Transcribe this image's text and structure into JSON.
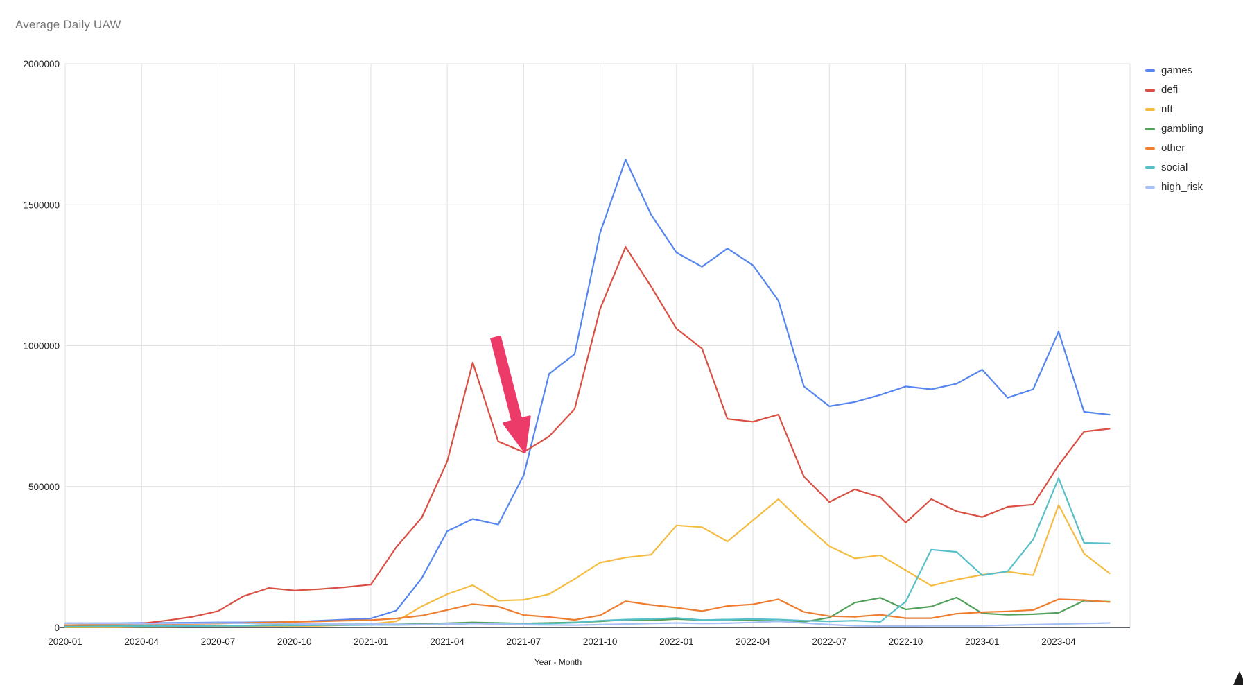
{
  "title": "Average Daily UAW",
  "y_axis": {
    "tick_values": [
      2000000,
      1500000,
      1000000,
      500000,
      0
    ],
    "tick_labels": [
      "2000000",
      "1500000",
      "1000000",
      "500000",
      "0"
    ]
  },
  "annotation": {
    "shape": "arrow",
    "color": "#ec3b68",
    "points_at": "2021-07 dip where games line crosses defi line",
    "from_month_index": 16.9,
    "from_value": 1028000,
    "to_month_index": 18.05,
    "to_value": 622000
  },
  "chart_data": {
    "type": "line",
    "title": "Average Daily UAW",
    "xlabel": "Year - Month",
    "ylabel": "",
    "ylim": [
      0,
      2000000
    ],
    "grid": true,
    "legend_position": "top-right",
    "x": [
      "2020-01",
      "2020-02",
      "2020-03",
      "2020-04",
      "2020-05",
      "2020-06",
      "2020-07",
      "2020-08",
      "2020-09",
      "2020-10",
      "2020-11",
      "2020-12",
      "2021-01",
      "2021-02",
      "2021-03",
      "2021-04",
      "2021-05",
      "2021-06",
      "2021-07",
      "2021-08",
      "2021-09",
      "2021-10",
      "2021-11",
      "2021-12",
      "2022-01",
      "2022-02",
      "2022-03",
      "2022-04",
      "2022-05",
      "2022-06",
      "2022-07",
      "2022-08",
      "2022-09",
      "2022-10",
      "2022-11",
      "2022-12",
      "2023-01",
      "2023-02",
      "2023-03",
      "2023-04",
      "2023-05",
      "2023-06"
    ],
    "x_tick_labels": [
      "2020-01",
      "2020-04",
      "2020-07",
      "2020-10",
      "2021-01",
      "2021-04",
      "2021-07",
      "2021-10",
      "2022-01",
      "2022-04",
      "2022-07",
      "2022-10",
      "2023-01",
      "2023-04"
    ],
    "series": [
      {
        "name": "games",
        "color": "#5585ee",
        "values": [
          15000,
          15000,
          15000,
          16000,
          16000,
          17000,
          18000,
          18000,
          19000,
          20000,
          24000,
          28000,
          32000,
          60000,
          175000,
          342000,
          385000,
          365000,
          540000,
          900000,
          970000,
          1400000,
          1660000,
          1465000,
          1330000,
          1280000,
          1345000,
          1285000,
          1160000,
          855000,
          785000,
          800000,
          825000,
          855000,
          845000,
          865000,
          915000,
          815000,
          845000,
          1050000,
          765000,
          755000
        ]
      },
      {
        "name": "defi",
        "color": "#da4f43",
        "values": [
          8000,
          9000,
          11000,
          14000,
          25000,
          38000,
          58000,
          111000,
          140000,
          131000,
          136000,
          143000,
          152000,
          285000,
          390000,
          590000,
          940000,
          660000,
          622000,
          678000,
          775000,
          1130000,
          1350000,
          1210000,
          1060000,
          990000,
          740000,
          730000,
          755000,
          535000,
          445000,
          490000,
          462000,
          372000,
          455000,
          412000,
          392000,
          428000,
          436000,
          576000,
          695000,
          705000
        ]
      },
      {
        "name": "nft",
        "color": "#f5bc42",
        "values": [
          1000,
          1000,
          1000,
          2000,
          2000,
          3000,
          3000,
          4000,
          4000,
          5000,
          6000,
          8000,
          12000,
          22000,
          75000,
          118000,
          150000,
          95000,
          98000,
          118000,
          172000,
          230000,
          248000,
          258000,
          362000,
          356000,
          305000,
          380000,
          455000,
          368000,
          288000,
          245000,
          256000,
          203000,
          148000,
          170000,
          187000,
          198000,
          185000,
          435000,
          262000,
          192000
        ]
      },
      {
        "name": "gambling",
        "color": "#51a05c",
        "values": [
          4000,
          4000,
          5000,
          5000,
          6000,
          6000,
          7000,
          7000,
          8000,
          8000,
          9000,
          10000,
          10000,
          11000,
          13000,
          15000,
          18000,
          16000,
          14000,
          16000,
          18000,
          22000,
          27000,
          25000,
          30000,
          26000,
          28000,
          25000,
          22000,
          20000,
          35000,
          88000,
          105000,
          64000,
          74000,
          106000,
          50000,
          45000,
          47000,
          52000,
          95000,
          91000
        ]
      },
      {
        "name": "other",
        "color": "#ee7d2f",
        "values": [
          8000,
          9000,
          10000,
          11000,
          12000,
          13000,
          14000,
          16000,
          18000,
          20000,
          22000,
          24000,
          26000,
          32000,
          42000,
          62000,
          83000,
          74000,
          44000,
          37000,
          27000,
          43000,
          93000,
          80000,
          70000,
          58000,
          76000,
          82000,
          100000,
          55000,
          40000,
          38000,
          45000,
          33000,
          33000,
          49000,
          54000,
          57000,
          62000,
          100000,
          97000,
          90000
        ]
      },
      {
        "name": "social",
        "color": "#58bfc8",
        "values": [
          3000,
          3000,
          4000,
          4000,
          5000,
          5000,
          6000,
          6000,
          7000,
          7000,
          8000,
          8000,
          9000,
          9000,
          10000,
          11000,
          14000,
          13000,
          12000,
          14000,
          17000,
          24000,
          28000,
          30000,
          34000,
          26000,
          28000,
          30000,
          28000,
          24000,
          22000,
          24000,
          20000,
          92000,
          276000,
          268000,
          185000,
          199000,
          312000,
          530000,
          300000,
          298000
        ]
      },
      {
        "name": "high_risk",
        "color": "#a6c0f5",
        "values": [
          15000,
          14000,
          14000,
          13000,
          14000,
          15000,
          16000,
          15000,
          14000,
          13000,
          12000,
          12000,
          12000,
          11000,
          10000,
          12000,
          14000,
          12000,
          10000,
          9000,
          8000,
          10000,
          12000,
          14000,
          16000,
          14000,
          15000,
          18000,
          22000,
          16000,
          10000,
          6000,
          5000,
          5000,
          6000,
          6000,
          6000,
          8000,
          10000,
          12000,
          14000,
          16000
        ]
      }
    ]
  }
}
